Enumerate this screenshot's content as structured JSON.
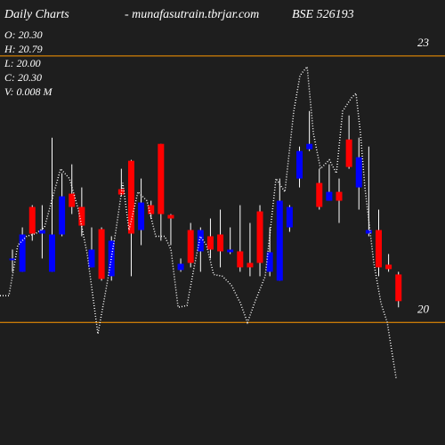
{
  "chart_data": {
    "type": "candlestick",
    "title": "Daily Charts",
    "site": "- munafasutrain.tbrjar.com",
    "symbol": "BSE 526193",
    "info": [
      "O: 20.30",
      "H: 20.79",
      "L: 20.00",
      "C: 20.30",
      "V: 0.008  M"
    ],
    "up_color": "#0000ff",
    "down_color": "#ff0000",
    "wick_color": "#ffffff",
    "grid_color": "#ff9900",
    "open": [
      20.7,
      20.57,
      21.3,
      21.0,
      20.57,
      20.99,
      21.45,
      21.3,
      20.62,
      21.05,
      20.52,
      21.5,
      21.82,
      21.04,
      21.32,
      22.01,
      21.21,
      20.59,
      21.04,
      20.8,
      20.97,
      20.99,
      20.79,
      20.8,
      20.67,
      21.25,
      20.57,
      20.47,
      21.07,
      21.62,
      21.95,
      21.57,
      21.37,
      21.47,
      22.06,
      21.52,
      21.0,
      21.04,
      20.65,
      20.54
    ],
    "high": [
      20.82,
      21.07,
      21.32,
      21.32,
      22.08,
      21.68,
      21.78,
      21.52,
      21.07,
      21.07,
      20.97,
      21.73,
      21.83,
      21.62,
      21.37,
      22.01,
      21.22,
      20.72,
      21.12,
      21.07,
      21.17,
      21.27,
      21.07,
      21.32,
      21.12,
      21.32,
      21.07,
      21.62,
      21.32,
      21.98,
      22.38,
      21.73,
      21.78,
      21.62,
      22.33,
      22.08,
      21.98,
      21.27,
      20.77,
      20.57
    ],
    "low": [
      20.57,
      20.57,
      20.92,
      20.72,
      20.57,
      20.97,
      21.22,
      20.97,
      20.62,
      20.47,
      20.47,
      21.42,
      20.52,
      20.87,
      21.17,
      20.92,
      20.87,
      20.57,
      20.62,
      20.57,
      20.72,
      20.62,
      20.77,
      20.57,
      20.52,
      20.52,
      20.52,
      20.47,
      21.02,
      21.52,
      21.93,
      21.27,
      21.37,
      21.12,
      21.73,
      21.27,
      20.97,
      20.52,
      20.57,
      20.17
    ],
    "close": [
      20.72,
      20.99,
      21.0,
      21.04,
      20.99,
      21.42,
      21.3,
      21.09,
      20.82,
      20.49,
      20.92,
      21.44,
      21.0,
      21.35,
      21.22,
      21.22,
      21.17,
      20.66,
      20.67,
      21.04,
      20.82,
      20.8,
      20.82,
      20.62,
      20.62,
      20.67,
      20.79,
      21.37,
      21.3,
      21.93,
      22.01,
      21.3,
      21.47,
      21.37,
      21.75,
      21.86,
      21.04,
      20.62,
      20.6,
      20.24
    ],
    "line": {
      "color": "#ffffff",
      "x": [
        -1.26,
        -0.36,
        0.54,
        1.44,
        2.34,
        3.24,
        3.96,
        4.86,
        5.76,
        6.65,
        7.55,
        8.63,
        9.53,
        10.43,
        11.15,
        11.78,
        12.68,
        13.58,
        14.48,
        15.38,
        16.01,
        16.73,
        17.63,
        18.35,
        18.97,
        19.6,
        20.32,
        21.22,
        22.12,
        23.02,
        23.74,
        24.64,
        25.54,
        26.62,
        27.52,
        28.42,
        29.05,
        29.77,
        30.4,
        31.12,
        32.01,
        32.73,
        33.36,
        34.26,
        34.71,
        35.16,
        35.61,
        36.51,
        37.23,
        37.86,
        38.76
      ],
      "values": [
        20.3,
        20.3,
        20.87,
        20.97,
        21.0,
        21.07,
        21.37,
        21.73,
        21.62,
        21.27,
        20.77,
        19.87,
        20.42,
        21.02,
        21.57,
        21.04,
        21.47,
        21.37,
        20.97,
        20.97,
        20.82,
        20.17,
        20.19,
        20.62,
        20.97,
        20.87,
        20.54,
        20.52,
        20.42,
        20.22,
        20.0,
        20.27,
        20.52,
        21.62,
        21.47,
        22.38,
        22.78,
        22.88,
        22.13,
        21.73,
        21.83,
        21.68,
        22.38,
        22.53,
        22.58,
        22.13,
        21.52,
        20.67,
        20.22,
        20.0,
        19.37
      ]
    },
    "xlim": [
      -1.26,
      43.7
    ],
    "ylim": [
      18.62,
      23.63
    ],
    "yticks": [
      20,
      23
    ]
  }
}
